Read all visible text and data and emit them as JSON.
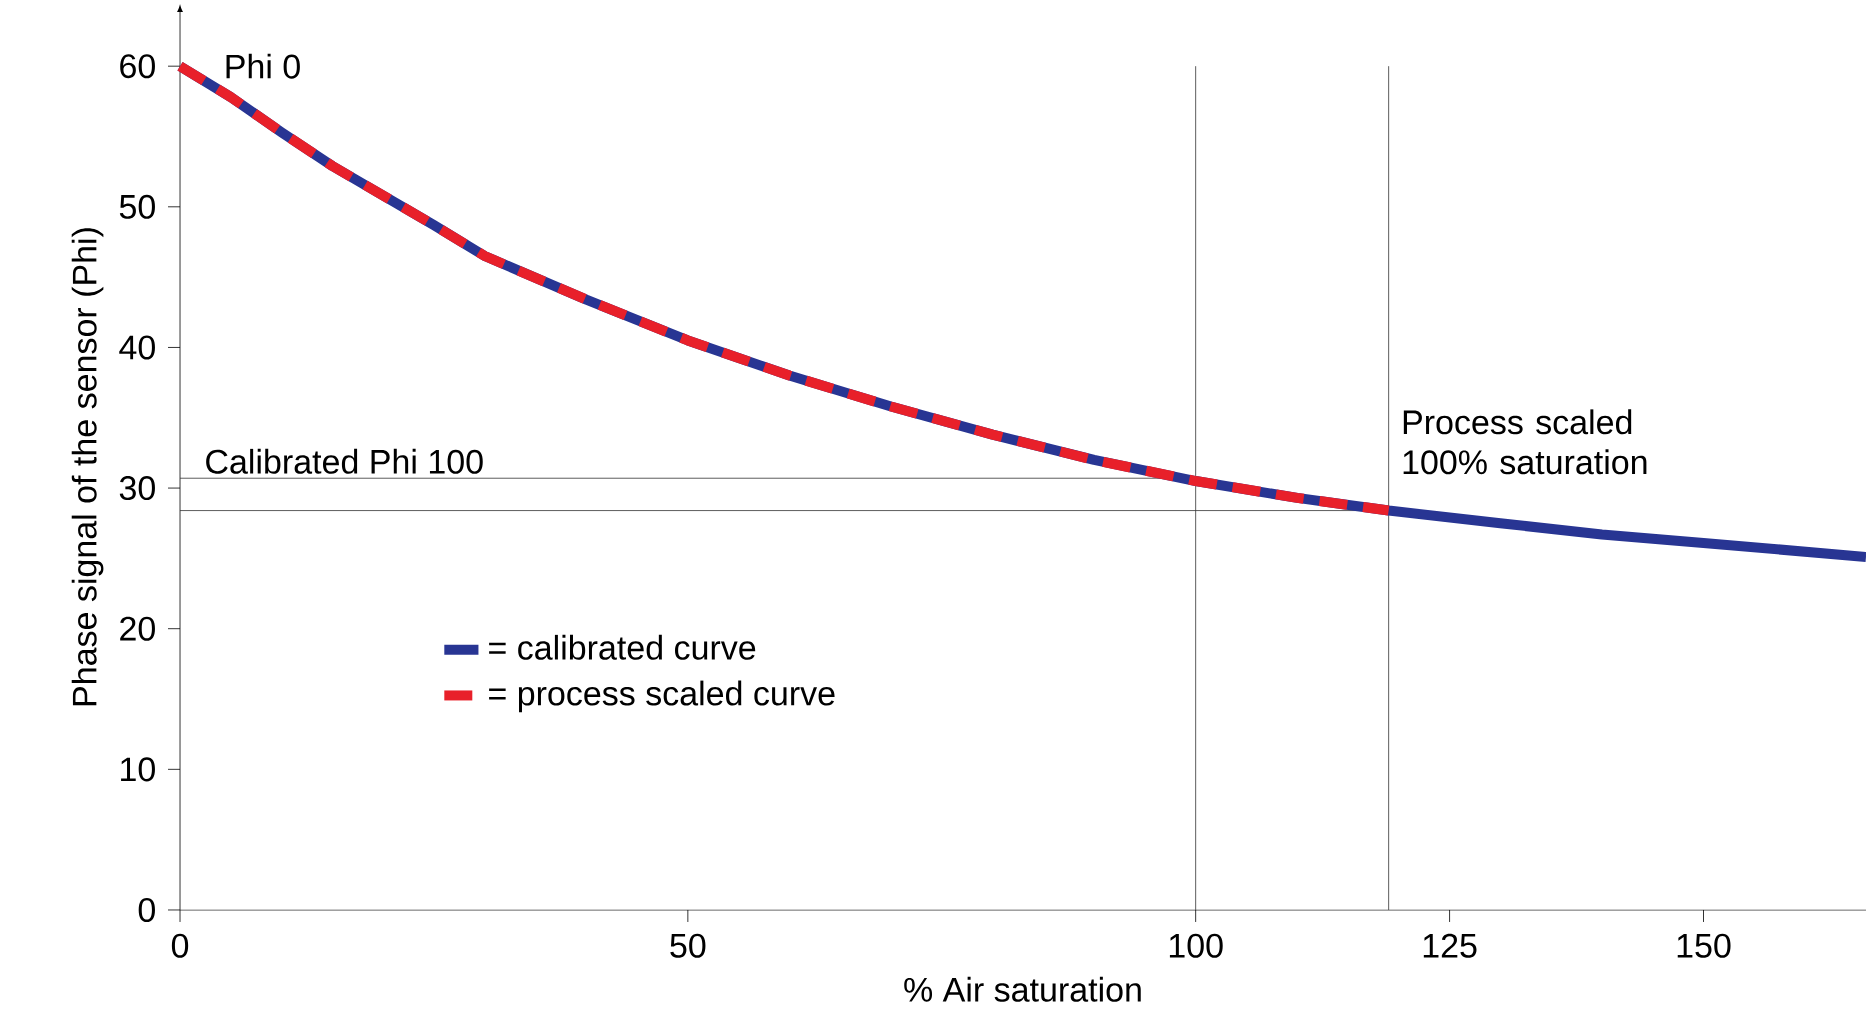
{
  "chart_data": {
    "type": "line",
    "xlabel": "% Air saturation",
    "ylabel": "Phase signal of the sensor (Phi)",
    "xlim": [
      0,
      166
    ],
    "ylim": [
      0,
      63
    ],
    "xticks": [
      0,
      50,
      100,
      125,
      150
    ],
    "yticks": [
      0,
      10,
      20,
      30,
      40,
      50,
      60
    ],
    "legend": "left",
    "grid": false,
    "series": [
      {
        "name": "= calibrated curve",
        "color": "#283593",
        "line_style": "solid",
        "x": [
          0,
          5,
          10,
          15,
          20,
          25,
          30,
          40,
          50,
          60,
          70,
          80,
          90,
          100,
          110,
          119,
          130,
          140,
          150,
          166
        ],
        "values": [
          60,
          57.8,
          55.3,
          52.9,
          50.8,
          48.7,
          46.5,
          43.4,
          40.5,
          38.0,
          35.8,
          33.8,
          32.0,
          30.5,
          29.3,
          28.4,
          27.5,
          26.7,
          26.1,
          25.1
        ]
      },
      {
        "name": "= process scaled curve",
        "color": "#e8202a",
        "line_style": "dashed",
        "x": [
          0,
          5,
          10,
          15,
          20,
          25,
          30,
          40,
          50,
          60,
          70,
          80,
          90,
          100,
          110,
          119
        ],
        "values": [
          60,
          57.8,
          55.3,
          52.9,
          50.8,
          48.7,
          46.5,
          43.4,
          40.5,
          38.0,
          35.8,
          33.8,
          32.0,
          30.5,
          29.3,
          28.4
        ]
      }
    ],
    "ref_lines": [
      {
        "axis": "y",
        "value": 30.7,
        "label": "Calibrated Phi 100"
      },
      {
        "axis": "x",
        "value": 100
      },
      {
        "axis": "y",
        "value": 28.4
      },
      {
        "axis": "x",
        "value": 119,
        "label": "Process scaled 100% saturation"
      }
    ],
    "annotations": [
      {
        "text": "Phi 0",
        "x": 0,
        "y": 60
      }
    ]
  }
}
